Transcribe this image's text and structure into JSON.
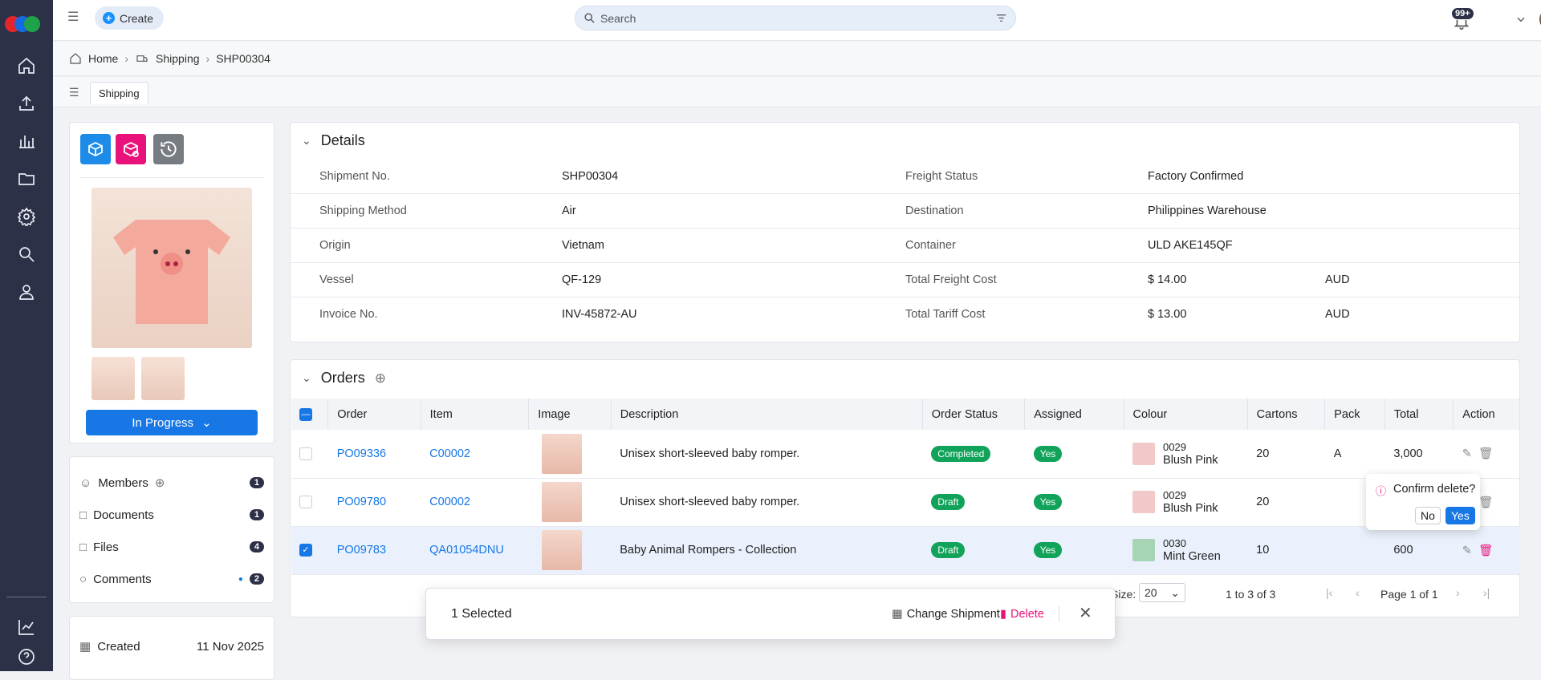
{
  "app": {
    "create_label": "Create",
    "search_placeholder": "Search",
    "notif_count": "99+"
  },
  "breadcrumb": {
    "home": "Home",
    "section": "Shipping",
    "current": "SHP00304"
  },
  "tab": {
    "label": "Shipping"
  },
  "product": {
    "status_label": "In Progress"
  },
  "sidebar": {
    "items": [
      {
        "label": "Members",
        "count": "1"
      },
      {
        "label": "Documents",
        "count": "1"
      },
      {
        "label": "Files",
        "count": "4"
      },
      {
        "label": "Comments",
        "count": "2"
      }
    ],
    "created_label": "Created",
    "created_value": "11 Nov 2025"
  },
  "details": {
    "title": "Details",
    "rows": [
      {
        "l1": "Shipment No.",
        "v1": "SHP00304",
        "l2": "Freight Status",
        "v2": "Factory Confirmed",
        "v3": ""
      },
      {
        "l1": "Shipping Method",
        "v1": "Air",
        "l2": "Destination",
        "v2": "Philippines Warehouse",
        "v3": ""
      },
      {
        "l1": "Origin",
        "v1": "Vietnam",
        "l2": "Container",
        "v2": "ULD AKE145QF",
        "v3": ""
      },
      {
        "l1": "Vessel",
        "v1": "QF-129",
        "l2": "Total Freight Cost",
        "v2": "$ 14.00",
        "v3": "AUD"
      },
      {
        "l1": "Invoice No.",
        "v1": "INV-45872-AU",
        "l2": "Total Tariff Cost",
        "v2": "$ 13.00",
        "v3": "AUD"
      }
    ]
  },
  "orders": {
    "title": "Orders",
    "columns": [
      "Order",
      "Item",
      "Image",
      "Description",
      "Order Status",
      "Assigned",
      "Colour",
      "Cartons",
      "Pack",
      "Total",
      "Action"
    ],
    "rows": [
      {
        "order": "PO09336",
        "item": "C00002",
        "description": "Unisex short-sleeved baby romper.",
        "status": "Completed",
        "status_color": "#11a35a",
        "assigned": "Yes",
        "colour_code": "0029",
        "colour_name": "Blush Pink",
        "swatch": "#f2c9c9",
        "cartons": "20",
        "pack": "A",
        "total": "3,000",
        "checked": false
      },
      {
        "order": "PO09780",
        "item": "C00002",
        "description": "Unisex short-sleeved baby romper.",
        "status": "Draft",
        "status_color": "#11a35a",
        "assigned": "Yes",
        "colour_code": "0029",
        "colour_name": "Blush Pink",
        "swatch": "#f2c9c9",
        "cartons": "20",
        "pack": "",
        "total": "",
        "checked": false
      },
      {
        "order": "PO09783",
        "item": "QA01054DNU",
        "description": "Baby Animal Rompers - Collection",
        "status": "Draft",
        "status_color": "#11a35a",
        "assigned": "Yes",
        "colour_code": "0030",
        "colour_name": "Mint Green",
        "swatch": "#a6d4b4",
        "cartons": "10",
        "pack": "",
        "total": "600",
        "checked": true
      }
    ],
    "page_size_label": "Size:",
    "page_size": "20",
    "range": "1 to 3 of 3",
    "page": "Page 1 of 1"
  },
  "confirm": {
    "text": "Confirm delete?",
    "no": "No",
    "yes": "Yes"
  },
  "selection": {
    "count_label": "1 Selected",
    "change_label": "Change Shipment",
    "delete_label": "Delete"
  }
}
